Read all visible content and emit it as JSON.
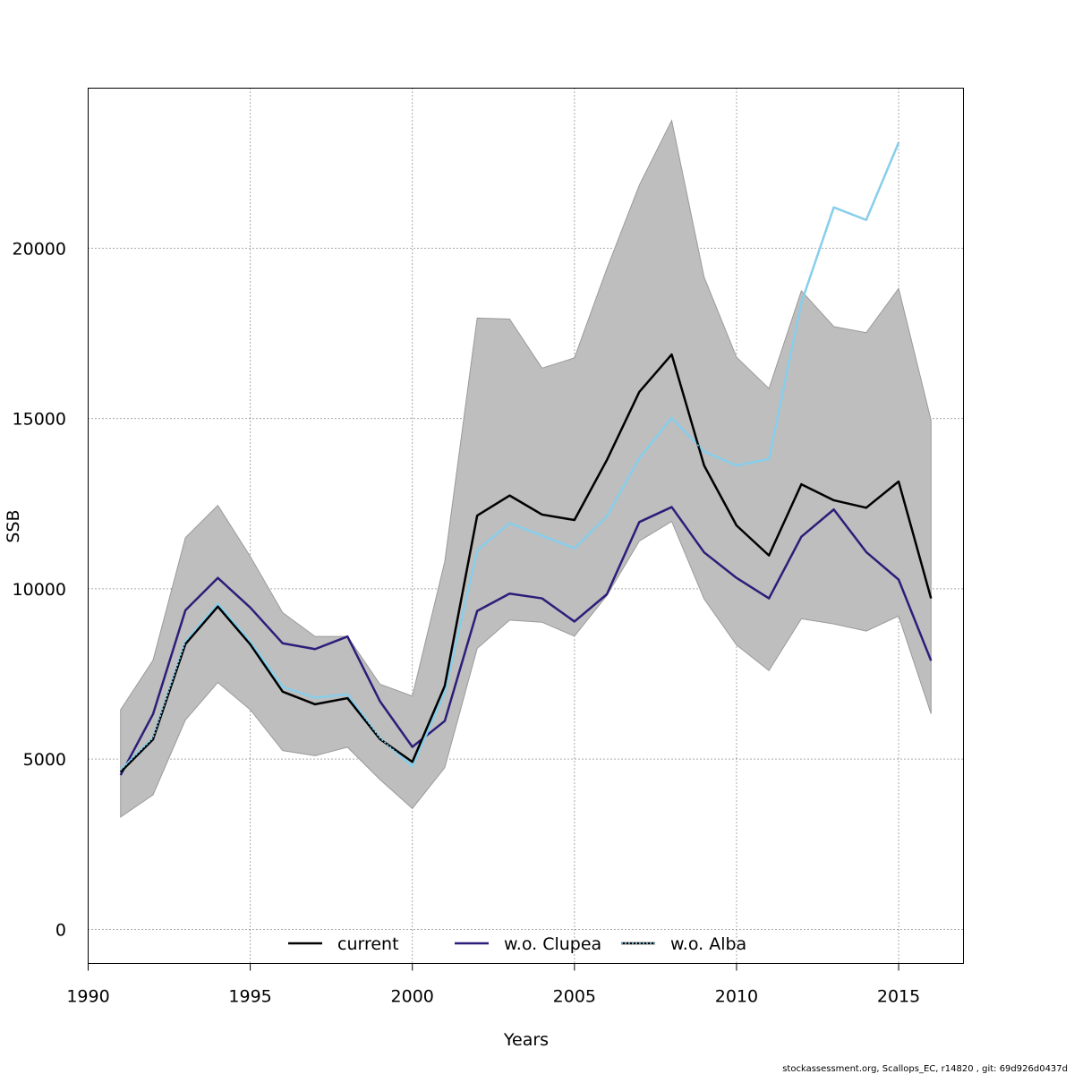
{
  "chart_data": {
    "type": "line",
    "xlabel": "Years",
    "ylabel": "SSB",
    "xlim": [
      1990,
      2017
    ],
    "ylim": [
      -1000,
      24700
    ],
    "x_ticks": [
      1990,
      1995,
      2000,
      2005,
      2010,
      2015
    ],
    "y_ticks": [
      0,
      5000,
      10000,
      15000,
      20000
    ],
    "grid": true,
    "legend_position": "bottom",
    "x": [
      1991,
      1992,
      1993,
      1994,
      1995,
      1996,
      1997,
      1998,
      1999,
      2000,
      2001,
      2002,
      2003,
      2004,
      2005,
      2006,
      2007,
      2008,
      2009,
      2010,
      2011,
      2012,
      2013,
      2014,
      2015,
      2016
    ],
    "band": {
      "upper": [
        6450,
        7900,
        11500,
        12450,
        10950,
        9300,
        8600,
        8600,
        7200,
        6850,
        10800,
        17950,
        17920,
        16480,
        16780,
        19400,
        21850,
        23750,
        19150,
        16800,
        15880,
        18750,
        17700,
        17520,
        18820,
        14950
      ],
      "lower": [
        3300,
        3950,
        6150,
        7250,
        6450,
        5250,
        5100,
        5350,
        4400,
        3550,
        4750,
        8250,
        9080,
        9020,
        8610,
        9800,
        11400,
        11980,
        9700,
        8350,
        7600,
        9120,
        8970,
        8760,
        9200,
        6330
      ]
    },
    "series": [
      {
        "name": "current",
        "color": "#000000",
        "style": "solid",
        "values": [
          4620,
          5580,
          8380,
          9480,
          8370,
          6980,
          6610,
          6790,
          5590,
          4920,
          7150,
          12150,
          12740,
          12180,
          12020,
          13780,
          15780,
          16880,
          13620,
          11860,
          10980,
          13070,
          12600,
          12380,
          13150,
          9720
        ]
      },
      {
        "name": "w.o. Clupea",
        "color": "#2B1E7A",
        "style": "solid",
        "values": [
          4530,
          6320,
          9370,
          10320,
          9450,
          8400,
          8230,
          8600,
          6700,
          5360,
          6120,
          9350,
          9860,
          9720,
          9040,
          9840,
          11960,
          12400,
          11070,
          10320,
          9720,
          11530,
          12330,
          11080,
          10270,
          7890
        ]
      },
      {
        "name": "w.o. Alba",
        "color": "#87CEEB",
        "style": "dotted",
        "values": [
          4680,
          5620,
          8450,
          9560,
          8450,
          7120,
          6800,
          6900,
          5620,
          4790,
          6950,
          11130,
          11930,
          11560,
          11190,
          12130,
          13830,
          15020,
          14030,
          13620,
          13810,
          18400,
          21200,
          20830,
          23100,
          null
        ]
      }
    ]
  },
  "footer": "stockassessment.org, Scallops_EC, r14820 , git: 69d926d0437d"
}
